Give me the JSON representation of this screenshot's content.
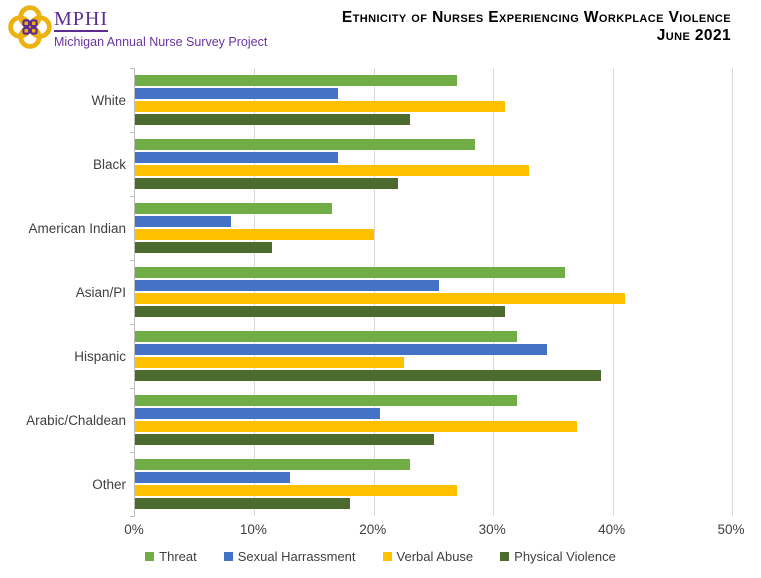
{
  "header": {
    "logo_acronym": "MPHI",
    "logo_subtitle": "Michigan Annual Nurse Survey Project",
    "title_line1": "Ethnicity of Nurses Experiencing Workplace Violence",
    "title_line2": "June 2021"
  },
  "colors": {
    "brand_purple": "#5E2B90",
    "logo_gold": "#ECB211",
    "axis_text": "#404040",
    "gridline": "#D9D9D9",
    "axis_line": "#BFBFBF"
  },
  "chart_data": {
    "type": "bar",
    "orientation": "horizontal",
    "title": "Ethnicity of Nurses Experiencing Workplace Violence",
    "subtitle": "June 2021",
    "categories": [
      "White",
      "Black",
      "American Indian",
      "Asian/PI",
      "Hispanic",
      "Arabic/Chaldean",
      "Other"
    ],
    "series": [
      {
        "name": "Threat",
        "color": "#70AD47",
        "values": [
          27,
          28.5,
          16.5,
          36,
          32,
          32,
          23
        ]
      },
      {
        "name": "Sexual Harrassment",
        "color": "#4472C4",
        "values": [
          17,
          17,
          8,
          25.5,
          34.5,
          20.5,
          13
        ]
      },
      {
        "name": "Verbal Abuse",
        "color": "#FFC000",
        "values": [
          31,
          33,
          20,
          41,
          22.5,
          37,
          27
        ]
      },
      {
        "name": "Physical Violence",
        "color": "#4E6B2F",
        "values": [
          23,
          22,
          11.5,
          31,
          39,
          25,
          18
        ]
      }
    ],
    "xlim": [
      0,
      50
    ],
    "x_tick_values": [
      0,
      10,
      20,
      30,
      40,
      50
    ],
    "x_tick_labels": [
      "0%",
      "10%",
      "20%",
      "30%",
      "40%",
      "50%"
    ],
    "grid": true,
    "legend_position": "bottom"
  }
}
